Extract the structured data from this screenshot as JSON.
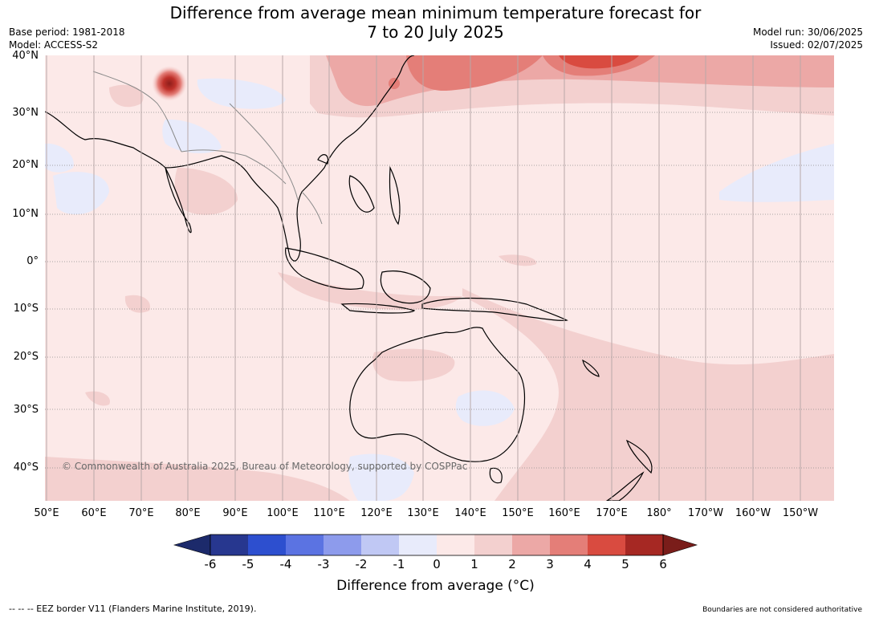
{
  "title_line1": "Difference from average mean minimum temperature forecast for",
  "title_line2": "7 to 20 July 2025",
  "base_period": "Base period: 1981-2018",
  "model": "Model: ACCESS-S2",
  "model_run": "Model run: 30/06/2025",
  "issued": "Issued: 02/07/2025",
  "lat_labels": [
    "40°N",
    "30°N",
    "20°N",
    "10°N",
    "0°",
    "10°S",
    "20°S",
    "30°S",
    "40°S"
  ],
  "lon_labels": [
    "50°E",
    "60°E",
    "70°E",
    "80°E",
    "90°E",
    "100°E",
    "110°E",
    "120°E",
    "130°E",
    "140°E",
    "150°E",
    "160°E",
    "170°E",
    "180°",
    "170°W",
    "160°W",
    "150°W"
  ],
  "credit": "© Commonwealth of Australia 2025, Bureau of Meteorology, supported by COSPPac",
  "colorbar": {
    "ticks": [
      "-6",
      "-5",
      "-4",
      "-3",
      "-2",
      "-1",
      "0",
      "1",
      "2",
      "3",
      "4",
      "5",
      "6"
    ],
    "colors": [
      "#27378f",
      "#2d4fcf",
      "#5b73e2",
      "#8d9bec",
      "#c0c8f4",
      "#e8ebfb",
      "#fce9e8",
      "#f3d0cf",
      "#eca8a6",
      "#e47e78",
      "#d94b40",
      "#a62823"
    ],
    "under_color": "#1c2a6b",
    "over_color": "#7a1d1a",
    "label": "Difference from average (°C)"
  },
  "eez_legend": "-- -- -- EEZ border V11 (Flanders Marine Institute, 2019).",
  "boundaries_note": "Boundaries are not considered authoritative"
}
